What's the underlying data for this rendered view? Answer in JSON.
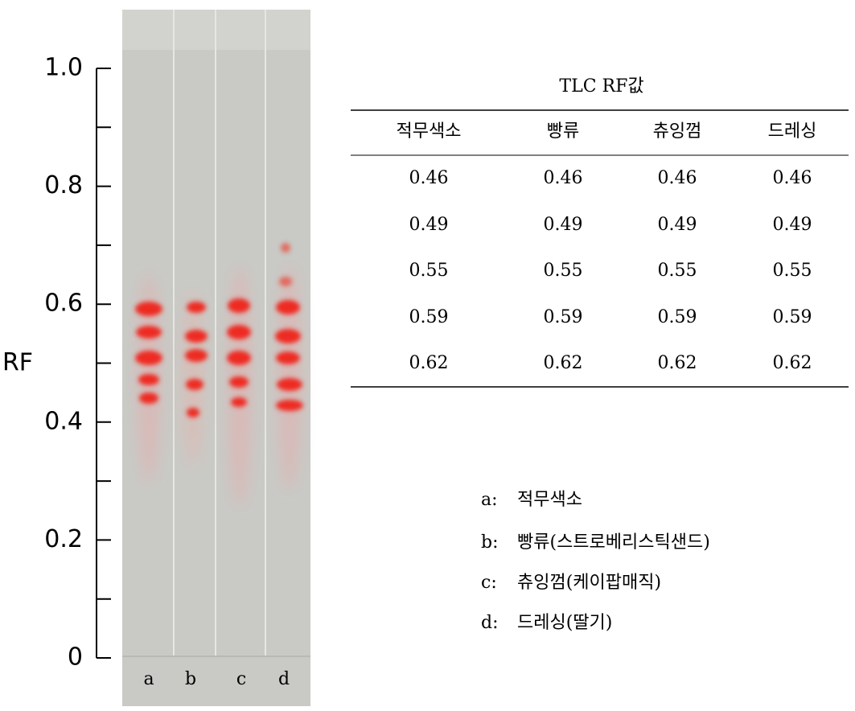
{
  "axis": {
    "label": "RF",
    "ylim": [
      0,
      1
    ],
    "yticks": [
      0,
      0.2,
      0.4,
      0.6,
      0.8,
      {
        "value": 1,
        "label": "1.0"
      }
    ],
    "minor_ticks": [
      0.1,
      0.3,
      0.5,
      0.7,
      0.9
    ]
  },
  "lanes": [
    "a",
    "b",
    "c",
    "d"
  ],
  "table": {
    "title": "TLC RF값",
    "headers": [
      "적무색소",
      "빵류",
      "츄잉껌",
      "드레싱"
    ],
    "rows": [
      [
        0.46,
        0.46,
        0.46,
        0.46
      ],
      [
        0.49,
        0.49,
        0.49,
        0.49
      ],
      [
        0.55,
        0.55,
        0.55,
        0.55
      ],
      [
        0.59,
        0.59,
        0.59,
        0.59
      ],
      [
        0.62,
        0.62,
        0.62,
        0.62
      ]
    ]
  },
  "legend": [
    {
      "key": "a:",
      "text": "적무색소"
    },
    {
      "key": "b:",
      "text": "빵류(스트로베리스틱샌드)"
    },
    {
      "key": "c:",
      "text": "츄잉껌(케이팝매직)"
    },
    {
      "key": "d:",
      "text": "드레싱(딸기)"
    }
  ]
}
